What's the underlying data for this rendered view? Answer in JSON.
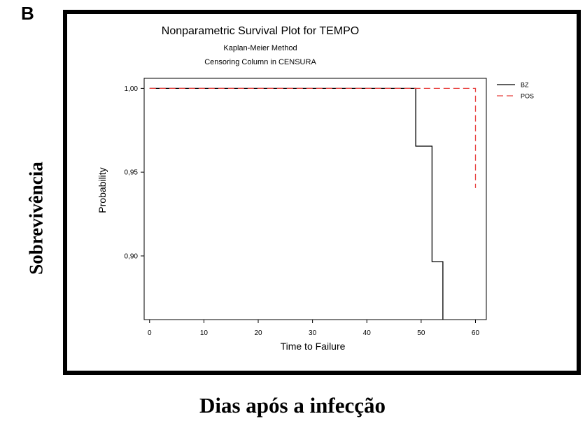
{
  "figure": {
    "panel_label": "B",
    "outer_ylabel": "Sobrevivência",
    "outer_xlabel": "Dias após a infecção"
  },
  "chart_data": {
    "type": "line",
    "title": "Nonparametric Survival Plot for TEMPO",
    "subtitle": "Kaplan-Meier Method",
    "subtitle2": "Censoring Column in CENSURA",
    "xlabel": "Time to Failure",
    "ylabel": "Probability",
    "xlim": [
      -1,
      62
    ],
    "ylim": [
      0.862,
      1.006
    ],
    "xticks": [
      0,
      10,
      20,
      30,
      40,
      50,
      60
    ],
    "xtick_labels": [
      "0",
      "10",
      "20",
      "30",
      "40",
      "50",
      "60"
    ],
    "yticks": [
      0.9,
      0.95,
      1.0
    ],
    "ytick_labels": [
      "0,90",
      "0,95",
      "1,00"
    ],
    "grid": false,
    "legend": "right-top",
    "series": [
      {
        "name": "BZ",
        "color": "#000000",
        "dash": "solid",
        "step": true,
        "x": [
          0,
          49,
          49,
          52,
          52,
          54,
          54
        ],
        "y": [
          1.0,
          1.0,
          0.9655,
          0.9655,
          0.8966,
          0.8966,
          0.862
        ]
      },
      {
        "name": "POS",
        "color": "#e8413f",
        "dash": "dashed",
        "step": true,
        "x": [
          0,
          60,
          60
        ],
        "y": [
          1.0,
          1.0,
          0.9405
        ]
      }
    ]
  }
}
